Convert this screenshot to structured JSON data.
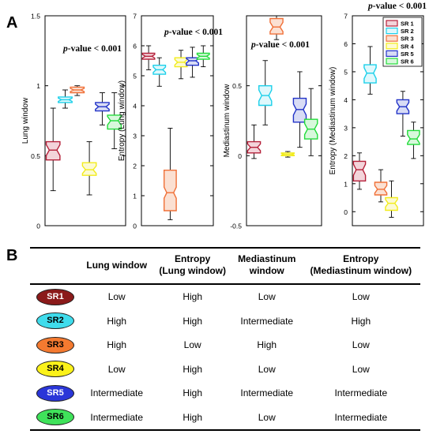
{
  "panel_a_label": "A",
  "panel_b_label": "B",
  "chart_data": [
    {
      "type": "box",
      "ylabel": "Lung window",
      "pvalue": "p-value < 0.001",
      "ylim": [
        0,
        1.5
      ],
      "yticks": [
        0,
        0.5,
        1,
        1.5
      ],
      "ytick_labels": [
        "0",
        "0.5",
        "1",
        "1.5"
      ],
      "series": [
        {
          "name": "SR 1",
          "min": 0.25,
          "q1": 0.47,
          "median": 0.54,
          "q3": 0.6,
          "max": 0.84
        },
        {
          "name": "SR 2",
          "min": 0.84,
          "q1": 0.88,
          "median": 0.9,
          "q3": 0.92,
          "max": 0.97
        },
        {
          "name": "SR 3",
          "min": 0.93,
          "q1": 0.95,
          "median": 0.97,
          "q3": 0.99,
          "max": 1.0
        },
        {
          "name": "SR 4",
          "min": 0.22,
          "q1": 0.36,
          "median": 0.4,
          "q3": 0.45,
          "max": 0.6
        },
        {
          "name": "SR 5",
          "min": 0.72,
          "q1": 0.82,
          "median": 0.85,
          "q3": 0.88,
          "max": 0.95
        },
        {
          "name": "SR 6",
          "min": 0.55,
          "q1": 0.69,
          "median": 0.75,
          "q3": 0.79,
          "max": 0.95
        }
      ]
    },
    {
      "type": "box",
      "ylabel": "Entropy (Lung window)",
      "pvalue": "p-value < 0.001",
      "ylim": [
        0,
        7
      ],
      "yticks": [
        0,
        1,
        2,
        3,
        4,
        5,
        6,
        7
      ],
      "ytick_labels": [
        "0",
        "1",
        "2",
        "3",
        "4",
        "5",
        "6",
        "7"
      ],
      "series": [
        {
          "name": "SR 1",
          "min": 5.2,
          "q1": 5.55,
          "median": 5.65,
          "q3": 5.75,
          "max": 6.0
        },
        {
          "name": "SR 2",
          "min": 4.65,
          "q1": 5.05,
          "median": 5.2,
          "q3": 5.35,
          "max": 5.6
        },
        {
          "name": "SR 3",
          "min": 0.2,
          "q1": 0.5,
          "median": 1.1,
          "q3": 1.85,
          "max": 3.25
        },
        {
          "name": "SR 4",
          "min": 4.9,
          "q1": 5.3,
          "median": 5.45,
          "q3": 5.6,
          "max": 5.85
        },
        {
          "name": "SR 5",
          "min": 4.95,
          "q1": 5.35,
          "median": 5.5,
          "q3": 5.6,
          "max": 5.95
        },
        {
          "name": "SR 6",
          "min": 5.3,
          "q1": 5.55,
          "median": 5.65,
          "q3": 5.75,
          "max": 6.0
        }
      ]
    },
    {
      "type": "box",
      "ylabel": "Mediastinum window",
      "pvalue": "p-value < 0.001",
      "ylim": [
        -0.5,
        1.0
      ],
      "yticks": [
        -0.5,
        0,
        0.5
      ],
      "ytick_labels": [
        "-0.5",
        "0",
        "0.5"
      ],
      "series": [
        {
          "name": "SR 1",
          "min": -0.02,
          "q1": 0.02,
          "median": 0.06,
          "q3": 0.1,
          "max": 0.22
        },
        {
          "name": "SR 2",
          "min": 0.22,
          "q1": 0.36,
          "median": 0.43,
          "q3": 0.5,
          "max": 0.68
        },
        {
          "name": "SR 3",
          "min": 0.83,
          "q1": 0.87,
          "median": 0.92,
          "q3": 0.98,
          "max": 1.0
        },
        {
          "name": "SR 4",
          "min": -0.01,
          "q1": 0.0,
          "median": 0.01,
          "q3": 0.02,
          "max": 0.03
        },
        {
          "name": "SR 5",
          "min": 0.06,
          "q1": 0.24,
          "median": 0.33,
          "q3": 0.41,
          "max": 0.6
        },
        {
          "name": "SR 6",
          "min": 0.0,
          "q1": 0.12,
          "median": 0.19,
          "q3": 0.26,
          "max": 0.48
        }
      ]
    },
    {
      "type": "box",
      "ylabel": "Entropy (Mediastinum window)",
      "pvalue": "p-value < 0.001",
      "ylim": [
        -0.5,
        7
      ],
      "yticks": [
        0,
        1,
        2,
        3,
        4,
        5,
        6,
        7
      ],
      "ytick_labels": [
        "0",
        "1",
        "2",
        "3",
        "4",
        "5",
        "6",
        "7"
      ],
      "legend_position": "top-right",
      "series": [
        {
          "name": "SR 1",
          "min": 0.8,
          "q1": 1.1,
          "median": 1.5,
          "q3": 1.8,
          "max": 2.1
        },
        {
          "name": "SR 2",
          "min": 4.2,
          "q1": 4.6,
          "median": 4.95,
          "q3": 5.25,
          "max": 5.9
        },
        {
          "name": "SR 3",
          "min": 0.35,
          "q1": 0.6,
          "median": 0.8,
          "q3": 1.05,
          "max": 1.5
        },
        {
          "name": "SR 4",
          "min": -0.2,
          "q1": 0.05,
          "median": 0.3,
          "q3": 0.5,
          "max": 1.1
        },
        {
          "name": "SR 5",
          "min": 2.7,
          "q1": 3.5,
          "median": 3.75,
          "q3": 4.0,
          "max": 4.3
        },
        {
          "name": "SR 6",
          "min": 1.9,
          "q1": 2.4,
          "median": 2.6,
          "q3": 2.9,
          "max": 3.2
        }
      ]
    }
  ],
  "colors": {
    "SR 1": {
      "stroke": "#b5213a",
      "fill": "#f3d4da",
      "oval": "#8b1a1a"
    },
    "SR 2": {
      "stroke": "#1cd0ea",
      "fill": "#dff8fc",
      "oval": "#3fdcec"
    },
    "SR 3": {
      "stroke": "#f07038",
      "fill": "#fbe0d2",
      "oval": "#f47a30"
    },
    "SR 4": {
      "stroke": "#f2ec1c",
      "fill": "#fcfad2",
      "oval": "#fbf21a"
    },
    "SR 5": {
      "stroke": "#2233c8",
      "fill": "#d8dcf5",
      "oval": "#2a36d8"
    },
    "SR 6": {
      "stroke": "#22dc3a",
      "fill": "#d8f8dc",
      "oval": "#3fe25a"
    }
  },
  "table": {
    "headers": [
      "",
      "Lung window",
      "Entropy\n(Lung window)",
      "Mediastinum\nwindow",
      "Entropy\n(Mediastinum window)"
    ],
    "rows": [
      {
        "sr": "SR1",
        "values": [
          "Low",
          "High",
          "Low",
          "Low"
        ]
      },
      {
        "sr": "SR2",
        "values": [
          "High",
          "High",
          "Intermediate",
          "High"
        ]
      },
      {
        "sr": "SR3",
        "values": [
          "High",
          "Low",
          "High",
          "Low"
        ]
      },
      {
        "sr": "SR4",
        "values": [
          "Low",
          "High",
          "Low",
          "Low"
        ]
      },
      {
        "sr": "SR5",
        "values": [
          "Intermediate",
          "High",
          "Intermediate",
          "Intermediate"
        ]
      },
      {
        "sr": "SR6",
        "values": [
          "Intermediate",
          "High",
          "Low",
          "Intermediate"
        ]
      }
    ]
  }
}
